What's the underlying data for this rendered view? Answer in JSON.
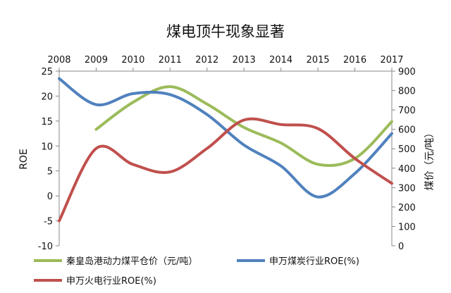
{
  "chart_data": {
    "type": "line",
    "title": "煤电顶牛现象显著",
    "x_ticks": [
      "2008",
      "2009",
      "2010",
      "2011",
      "2012",
      "2013",
      "2014",
      "2015",
      "2016",
      "2017"
    ],
    "left_axis": {
      "label": "ROE",
      "ylim": [
        -10,
        25
      ],
      "ticks": [
        "25",
        "20",
        "15",
        "10",
        "5",
        "0",
        "-5",
        "-10"
      ]
    },
    "right_axis": {
      "label": "煤价（元/吨）",
      "ylim": [
        0,
        900
      ],
      "ticks": [
        "900",
        "800",
        "700",
        "600",
        "500",
        "400",
        "300",
        "200",
        "100",
        "0"
      ]
    },
    "grid": false,
    "legend_position": "bottom",
    "series": [
      {
        "name": "秦皇岛港动力煤平仓价（元/吨）",
        "axis": "right",
        "color": "#9BBB59",
        "points": [
          [
            2009,
            600
          ],
          [
            2010,
            740
          ],
          [
            2011,
            820
          ],
          [
            2012,
            730
          ],
          [
            2013,
            610
          ],
          [
            2014,
            530
          ],
          [
            2015,
            420
          ],
          [
            2016,
            450
          ],
          [
            2017,
            640
          ]
        ]
      },
      {
        "name": "申万煤炭行业ROE(%)",
        "axis": "left",
        "color": "#4F81BD",
        "points": [
          [
            2008,
            23.5
          ],
          [
            2009,
            18.3
          ],
          [
            2010,
            20.5
          ],
          [
            2011,
            20.3
          ],
          [
            2012,
            16.3
          ],
          [
            2013,
            10.2
          ],
          [
            2014,
            6
          ],
          [
            2015,
            -0.2
          ],
          [
            2016,
            4.5
          ],
          [
            2017,
            12.5
          ]
        ]
      },
      {
        "name": "申万火电行业ROE(%)",
        "axis": "left",
        "color": "#C0504D",
        "points": [
          [
            2008,
            -5
          ],
          [
            2009,
            9.5
          ],
          [
            2010,
            6.3
          ],
          [
            2011,
            4.8
          ],
          [
            2012,
            9.5
          ],
          [
            2013,
            15.2
          ],
          [
            2014,
            14.3
          ],
          [
            2015,
            13.5
          ],
          [
            2016,
            7.5
          ],
          [
            2017,
            2.5
          ]
        ]
      }
    ]
  }
}
